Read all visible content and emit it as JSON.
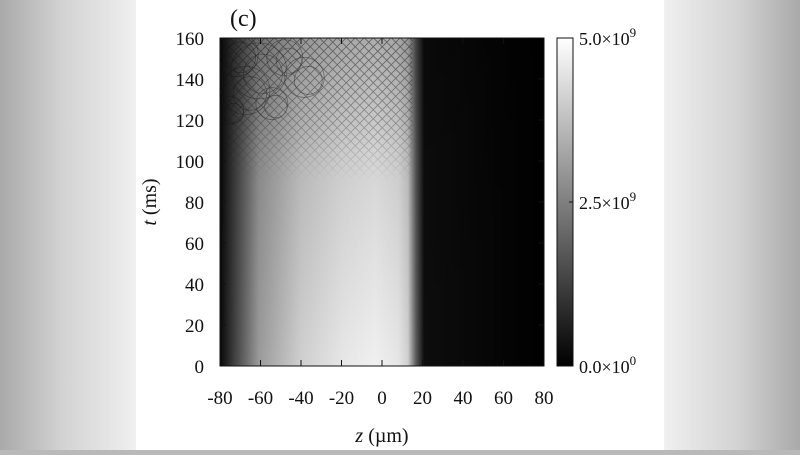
{
  "chart_data": {
    "type": "heatmap",
    "panel_label": "(c)",
    "xlabel": {
      "var": "z",
      "unit": " (µm)"
    },
    "ylabel": {
      "var": "t",
      "unit": " (ms)"
    },
    "xlim": [
      -80,
      80
    ],
    "ylim": [
      0,
      160
    ],
    "x_ticks": [
      {
        "value": -80,
        "label": "-80"
      },
      {
        "value": -60,
        "label": "-60"
      },
      {
        "value": -40,
        "label": "-40"
      },
      {
        "value": -20,
        "label": "-20"
      },
      {
        "value": 0,
        "label": "0"
      },
      {
        "value": 20,
        "label": "20"
      },
      {
        "value": 40,
        "label": "40"
      },
      {
        "value": 60,
        "label": "60"
      },
      {
        "value": 80,
        "label": "80"
      }
    ],
    "y_ticks": [
      {
        "value": 0,
        "label": "0"
      },
      {
        "value": 20,
        "label": "20"
      },
      {
        "value": 40,
        "label": "40"
      },
      {
        "value": 60,
        "label": "60"
      },
      {
        "value": 80,
        "label": "80"
      },
      {
        "value": 100,
        "label": "100"
      },
      {
        "value": 120,
        "label": "120"
      },
      {
        "value": 140,
        "label": "140"
      },
      {
        "value": 160,
        "label": "160"
      }
    ],
    "colorbar": {
      "range": [
        0,
        5000000000
      ],
      "ticks": [
        {
          "value": 0,
          "mantissa": "0.0×10",
          "exp": "0"
        },
        {
          "value": 2500000000,
          "mantissa": "2.5×10",
          "exp": "9"
        },
        {
          "value": 5000000000,
          "mantissa": "5.0×10",
          "exp": "9"
        }
      ],
      "colormap": "grayscale",
      "low_color": "#000000",
      "high_color": "#ffffff"
    },
    "density_profile": {
      "left_edge_z": -80,
      "right_edge_z": 15,
      "peak_z": -10,
      "pattern_onset_t": 90,
      "pattern_description": "interference lattice"
    }
  }
}
